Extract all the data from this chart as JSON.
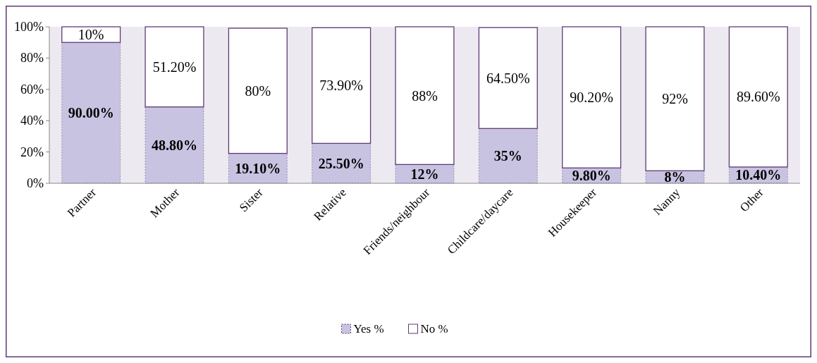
{
  "chart_data": {
    "type": "bar",
    "stacked": true,
    "categories": [
      "Partner",
      "Mother",
      "Sister",
      "Relative",
      "Friends/neighbour",
      "Childcare/daycare",
      "Housekeeper",
      "Nanny",
      "Other"
    ],
    "series": [
      {
        "name": "Yes %",
        "color": "#c9c3e2",
        "values": [
          90,
          48.8,
          19.1,
          25.5,
          12,
          35,
          9.8,
          8,
          10.4
        ],
        "value_labels": [
          "90.00%",
          "48.80%",
          "19.10%",
          "25.50%",
          "12%",
          "35%",
          "9.80%",
          "8%",
          "10.40%"
        ]
      },
      {
        "name": "No %",
        "color": "#ffffff",
        "values": [
          10,
          51.2,
          80,
          73.9,
          88,
          64.5,
          90.2,
          92,
          89.6
        ],
        "value_labels": [
          "10%",
          "51.20%",
          "80%",
          "73.90%",
          "88%",
          "64.50%",
          "90.20%",
          "92%",
          "89.60%"
        ]
      }
    ],
    "ylim": [
      0,
      100
    ],
    "yticks": [
      {
        "value": 0,
        "label": "0%"
      },
      {
        "value": 20,
        "label": "20%"
      },
      {
        "value": 40,
        "label": "40%"
      },
      {
        "value": 60,
        "label": "60%"
      },
      {
        "value": 80,
        "label": "80%"
      },
      {
        "value": 100,
        "label": "100%"
      }
    ],
    "grid": false,
    "legend": "bottom"
  }
}
